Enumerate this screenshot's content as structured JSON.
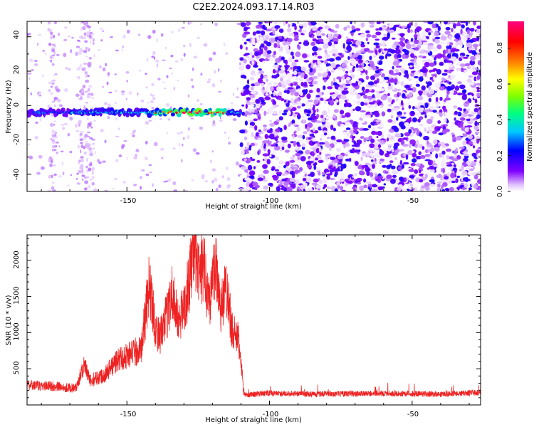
{
  "title": "C2E2.2024.093.17.14.R03",
  "chart_data": [
    {
      "type": "heatmap",
      "xlabel": "Height of straight line (km)",
      "ylabel": "Frequency (Hz)",
      "xlim": [
        -185,
        -26
      ],
      "ylim": [
        -50,
        49
      ],
      "xticks": [
        "-150",
        "-100",
        "-50"
      ],
      "yticks": [
        "40",
        "20",
        "0",
        "-20",
        "-40"
      ],
      "colorbar": {
        "label": "Normalized spectral amplitude",
        "range": [
          0.0,
          0.95
        ],
        "ticks": [
          "0.0",
          "0.2",
          "0.4",
          "0.6",
          "0.8"
        ],
        "colors": [
          "#ffffff",
          "#e0c0ff",
          "#8000ff",
          "#0000ff",
          "#00c8ff",
          "#00ff80",
          "#80ff00",
          "#ffff00",
          "#ff8000",
          "#ff0000",
          "#ff0080"
        ]
      },
      "signal_band": {
        "frequency_hz": -4,
        "x_start": -185,
        "x_end": -110,
        "peak_region_x": [
          -140,
          -115
        ],
        "peak_amplitude": 0.9
      },
      "noise_region": {
        "x_start": -110,
        "x_end": -26,
        "typical_amplitude": 0.25
      }
    },
    {
      "type": "line",
      "xlabel": "Height of straight line (km)",
      "ylabel": "SNR (10 * v/v)",
      "xlim": [
        -185,
        -26
      ],
      "ylim": [
        0,
        2350
      ],
      "xticks": [
        "-150",
        "-100",
        "-50"
      ],
      "yticks": [
        "500",
        "1000",
        "1500",
        "2000"
      ],
      "color": "#ee2222",
      "series": [
        {
          "x": [
            -185,
            -176,
            -168,
            -165,
            -163,
            -158,
            -153,
            -149,
            -145,
            -142,
            -140,
            -138,
            -136,
            -134,
            -132,
            -130,
            -128,
            -126.5,
            -125,
            -123,
            -121,
            -119,
            -117,
            -115,
            -113,
            -111,
            -110,
            -109,
            -100,
            -80,
            -60,
            -40,
            -26
          ],
          "y": [
            270,
            260,
            230,
            560,
            330,
            420,
            630,
            700,
            760,
            1700,
            1050,
            960,
            1230,
            1600,
            1120,
            1360,
            1700,
            2320,
            1800,
            1900,
            1400,
            2000,
            1350,
            1650,
            1000,
            900,
            650,
            140,
            160,
            150,
            160,
            150,
            170
          ]
        }
      ]
    }
  ]
}
